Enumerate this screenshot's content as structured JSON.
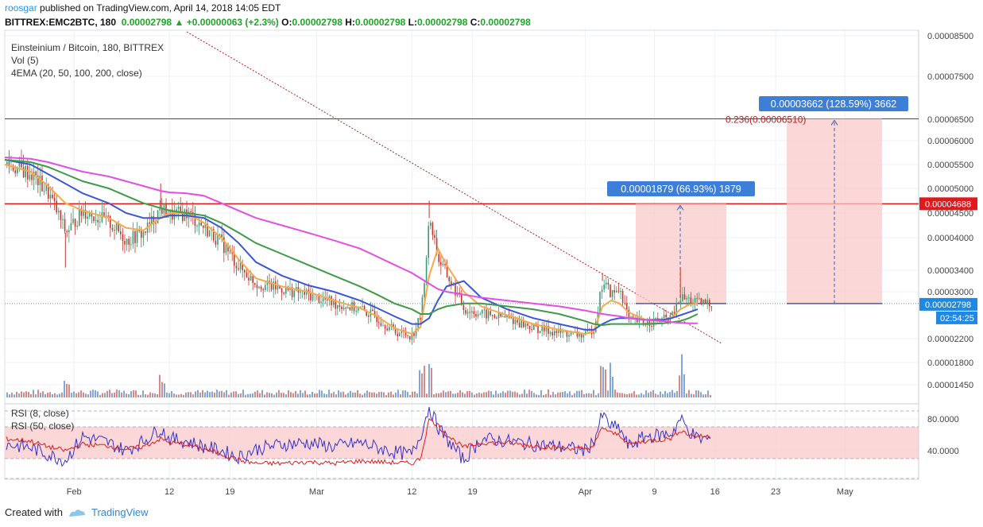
{
  "header": {
    "user": "roosgar",
    "published": " published on TradingView.com, April 14, 2018 14:05 EDT",
    "symbol": "BITTREX:EMC2BTC, 180",
    "last": "0.00002798",
    "change": "+0.00000063 (+2.3%)",
    "o_label": "O:",
    "o": "0.00002798",
    "h_label": "H:",
    "h": "0.00002798",
    "l_label": "L:",
    "l": "0.00002798",
    "c_label": "C:",
    "c": "0.00002798"
  },
  "legend": {
    "title": "Einsteinium / Bitcoin, 180, BITTREX",
    "vol": "Vol (5)",
    "ema": "4EMA (20, 50, 100, 200, close)",
    "rsi8": "RSI (8, close)",
    "rsi50": "RSI (50, close)"
  },
  "footer": {
    "created": "Created with",
    "brand": "TradingView"
  },
  "colors": {
    "up": "#3d9970",
    "down": "#c0392b",
    "ema20": "#f7a84a",
    "ema50": "#3b57d9",
    "ema100": "#3f9b48",
    "ema200": "#e24ee6",
    "resistance": "#e0191b",
    "fib": "#b22222",
    "rsi8": "#3333cc",
    "rsi50": "#e01b1b",
    "band": "#f9c9c9",
    "tag_bg": "#3d7fd6",
    "price_tag_bg": "#1e88e5"
  },
  "chart_data": [
    {
      "type": "candlestick",
      "title": "Einsteinium / Bitcoin, 180, BITTREX",
      "x_tick_labels": [
        "Feb",
        "12",
        "19",
        "Mar",
        "12",
        "19",
        "Apr",
        "9",
        "16",
        "23",
        "May"
      ],
      "y_tick_labels": [
        "0.00008500",
        "0.00007500",
        "0.00006500",
        "0.00006000",
        "0.00005500",
        "0.00005000",
        "0.00004500",
        "0.00004000",
        "0.00003400",
        "0.00003000",
        "0.00002200",
        "0.00001800",
        "0.00001450"
      ],
      "ylim": [
        1.35e-05,
        8.7e-05
      ],
      "price_series": [
        {
          "date": "2018-01-24",
          "close": 5.52e-05
        },
        {
          "date": "2018-01-27",
          "close": 5.3e-05
        },
        {
          "date": "2018-01-29",
          "close": 4.9e-05
        },
        {
          "date": "2018-01-31",
          "close": 4.1e-05
        },
        {
          "date": "2018-02-02",
          "close": 4.55e-05
        },
        {
          "date": "2018-02-05",
          "close": 4.3e-05
        },
        {
          "date": "2018-02-07",
          "close": 3.95e-05
        },
        {
          "date": "2018-02-09",
          "close": 4.1e-05
        },
        {
          "date": "2018-02-11",
          "close": 4.6e-05
        },
        {
          "date": "2018-02-12",
          "close": 4.45e-05
        },
        {
          "date": "2018-02-14",
          "close": 4.5e-05
        },
        {
          "date": "2018-02-16",
          "close": 4.2e-05
        },
        {
          "date": "2018-02-18",
          "close": 3.9e-05
        },
        {
          "date": "2018-02-20",
          "close": 3.45e-05
        },
        {
          "date": "2018-02-22",
          "close": 3.15e-05
        },
        {
          "date": "2018-02-25",
          "close": 3.05e-05
        },
        {
          "date": "2018-02-28",
          "close": 2.95e-05
        },
        {
          "date": "2018-03-03",
          "close": 2.8e-05
        },
        {
          "date": "2018-03-06",
          "close": 2.7e-05
        },
        {
          "date": "2018-03-08",
          "close": 2.55e-05
        },
        {
          "date": "2018-03-10",
          "close": 2.32e-05
        },
        {
          "date": "2018-03-12",
          "close": 2.25e-05
        },
        {
          "date": "2018-03-13",
          "close": 2.6e-05
        },
        {
          "date": "2018-03-14",
          "close": 4.4e-05
        },
        {
          "date": "2018-03-15",
          "close": 3.6e-05
        },
        {
          "date": "2018-03-16",
          "close": 3.3e-05
        },
        {
          "date": "2018-03-18",
          "close": 2.7e-05
        },
        {
          "date": "2018-03-20",
          "close": 2.62e-05
        },
        {
          "date": "2018-03-23",
          "close": 2.55e-05
        },
        {
          "date": "2018-03-26",
          "close": 2.38e-05
        },
        {
          "date": "2018-03-29",
          "close": 2.3e-05
        },
        {
          "date": "2018-04-01",
          "close": 2.25e-05
        },
        {
          "date": "2018-04-02",
          "close": 2.4e-05
        },
        {
          "date": "2018-04-03",
          "close": 3.2e-05
        },
        {
          "date": "2018-04-04",
          "close": 2.95e-05
        },
        {
          "date": "2018-04-05",
          "close": 3.05e-05
        },
        {
          "date": "2018-04-06",
          "close": 2.5e-05
        },
        {
          "date": "2018-04-08",
          "close": 2.48e-05
        },
        {
          "date": "2018-04-10",
          "close": 2.52e-05
        },
        {
          "date": "2018-04-11",
          "close": 2.58e-05
        },
        {
          "date": "2018-04-12",
          "close": 2.9e-05
        },
        {
          "date": "2018-04-13",
          "close": 2.85e-05
        },
        {
          "date": "2018-04-14",
          "close": 2.8e-05
        }
      ],
      "series": [
        {
          "name": "EMA 20",
          "values": [
            5.5e-05,
            5.35e-05,
            5.05e-05,
            4.7e-05,
            4.55e-05,
            4.4e-05,
            4.2e-05,
            4.15e-05,
            4.4e-05,
            4.5e-05,
            4.5e-05,
            4.3e-05,
            4e-05,
            3.6e-05,
            3.25e-05,
            3.1e-05,
            3e-05,
            2.85e-05,
            2.72e-05,
            2.58e-05,
            2.38e-05,
            2.28e-05,
            2.4e-05,
            3.3e-05,
            3.8e-05,
            3.5e-05,
            3e-05,
            2.75e-05,
            2.6e-05,
            2.45e-05,
            2.35e-05,
            2.28e-05,
            2.32e-05,
            2.75e-05,
            2.85e-05,
            2.8e-05,
            2.65e-05,
            2.52e-05,
            2.52e-05,
            2.56e-05,
            2.7e-05,
            2.78e-05,
            2.8e-05
          ]
        },
        {
          "name": "EMA 50",
          "values": [
            5.6e-05,
            5.5e-05,
            5.3e-05,
            5.1e-05,
            4.9e-05,
            4.7e-05,
            4.5e-05,
            4.4e-05,
            4.4e-05,
            4.45e-05,
            4.45e-05,
            4.4e-05,
            4.2e-05,
            3.9e-05,
            3.55e-05,
            3.3e-05,
            3.12e-05,
            3e-05,
            2.85e-05,
            2.72e-05,
            2.58e-05,
            2.45e-05,
            2.45e-05,
            2.55e-05,
            2.85e-05,
            3.1e-05,
            3.2e-05,
            2.9e-05,
            2.7e-05,
            2.55e-05,
            2.45e-05,
            2.35e-05,
            2.35e-05,
            2.45e-05,
            2.52e-05,
            2.55e-05,
            2.55e-05,
            2.52e-05,
            2.52e-05,
            2.55e-05,
            2.6e-05,
            2.65e-05,
            2.7e-05
          ]
        },
        {
          "name": "EMA 100",
          "values": [
            5.6e-05,
            5.55e-05,
            5.45e-05,
            5.3e-05,
            5.15e-05,
            5e-05,
            4.85e-05,
            4.7e-05,
            4.6e-05,
            4.55e-05,
            4.5e-05,
            4.45e-05,
            4.3e-05,
            4.1e-05,
            3.9e-05,
            3.7e-05,
            3.5e-05,
            3.3e-05,
            3.1e-05,
            2.95e-05,
            2.8e-05,
            2.7e-05,
            2.62e-05,
            2.62e-05,
            2.7e-05,
            2.75e-05,
            2.8e-05,
            2.8e-05,
            2.75e-05,
            2.7e-05,
            2.62e-05,
            2.5e-05,
            2.45e-05,
            2.43e-05,
            2.45e-05,
            2.45e-05,
            2.45e-05,
            2.45e-05,
            2.46e-05,
            2.48e-05,
            2.5e-05,
            2.55e-05,
            2.62e-05
          ]
        },
        {
          "name": "EMA 200",
          "values": [
            5.65e-05,
            5.62e-05,
            5.55e-05,
            5.45e-05,
            5.35e-05,
            5.25e-05,
            5.15e-05,
            5.05e-05,
            4.95e-05,
            4.92e-05,
            4.9e-05,
            4.85e-05,
            4.7e-05,
            4.55e-05,
            4.4e-05,
            4.25e-05,
            4.1e-05,
            3.95e-05,
            3.8e-05,
            3.65e-05,
            3.5e-05,
            3.35e-05,
            3.25e-05,
            3.15e-05,
            3.05e-05,
            3e-05,
            2.95e-05,
            2.9e-05,
            2.85e-05,
            2.8e-05,
            2.75e-05,
            2.68e-05,
            2.65e-05,
            2.62e-05,
            2.6e-05,
            2.58e-05,
            2.55e-05,
            2.52e-05,
            2.5e-05,
            2.48e-05,
            2.47e-05,
            2.46e-05,
            2.46e-05
          ]
        }
      ],
      "annotations": [
        {
          "label": "0.00001879 (66.93%) 1879"
        },
        {
          "label": "0.00003662 (128.59%) 3662"
        },
        {
          "label": "0.236(0.00006510)",
          "value": 6.51e-05
        },
        {
          "label": "0.00004688",
          "value": 4.688e-05
        },
        {
          "label": "0.00002798",
          "value": 2.798e-05
        },
        {
          "label": "02:54:25"
        }
      ]
    },
    {
      "type": "line",
      "title": "RSI",
      "y_tick_labels": [
        "80.0000",
        "40.0000"
      ],
      "ylim": [
        5,
        100
      ],
      "series": [
        {
          "name": "RSI (8, close)",
          "values": [
            48,
            44,
            35,
            28,
            58,
            50,
            40,
            52,
            68,
            55,
            52,
            45,
            40,
            32,
            42,
            48,
            50,
            45,
            50,
            44,
            38,
            35,
            60,
            95,
            70,
            55,
            28,
            55,
            52,
            48,
            45,
            40,
            52,
            85,
            70,
            68,
            45,
            58,
            60,
            62,
            80,
            65,
            55
          ]
        },
        {
          "name": "RSI (50, close)",
          "values": [
            55,
            52,
            45,
            40,
            48,
            46,
            42,
            45,
            55,
            50,
            48,
            42,
            36,
            28,
            24,
            24,
            26,
            24,
            27,
            26,
            25,
            24,
            30,
            80,
            72,
            60,
            44,
            50,
            50,
            46,
            44,
            42,
            46,
            70,
            62,
            60,
            48,
            52,
            54,
            56,
            66,
            60,
            58
          ]
        }
      ]
    }
  ]
}
